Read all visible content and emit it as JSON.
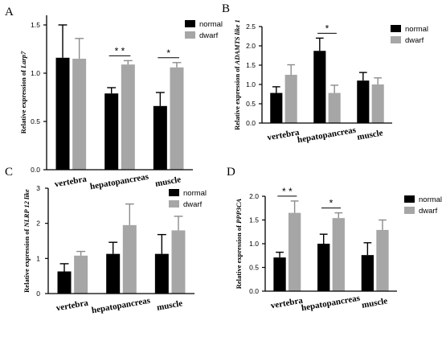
{
  "colors": {
    "normal": "#000000",
    "dwarf": "#a6a6a6",
    "axis": "#000000"
  },
  "chart_data": [
    {
      "panel_label": "A",
      "type": "bar",
      "ylabel": "Relative expression of Larp7",
      "ylabel_prefix": "Relative expression of",
      "ylabel_gene": "Larp7",
      "ylim": [
        0,
        1.6
      ],
      "yticks": [
        0.0,
        0.5,
        1.0,
        1.5
      ],
      "ytick_labels": [
        "0.0",
        "0.5",
        "1.0",
        "1.5"
      ],
      "categories": [
        "vertebra",
        "hepatopancreas",
        "muscle"
      ],
      "series": [
        {
          "name": "normal",
          "values": [
            1.16,
            0.79,
            0.66
          ],
          "errors": [
            0.34,
            0.06,
            0.14
          ]
        },
        {
          "name": "dwarf",
          "values": [
            1.15,
            1.09,
            1.06
          ],
          "errors": [
            0.21,
            0.04,
            0.05
          ]
        }
      ],
      "annotations": [
        {
          "category": 1,
          "text": "* *"
        },
        {
          "category": 2,
          "text": "*"
        }
      ],
      "legend_position": "top-right"
    },
    {
      "panel_label": "B",
      "type": "bar",
      "ylabel": "Relative expression of ADAMTS like 1",
      "ylabel_prefix": "Relative expression of",
      "ylabel_gene": "ADAMTS like 1",
      "ylim": [
        0,
        2.5
      ],
      "yticks": [
        0.0,
        0.5,
        1.0,
        1.5,
        2.0,
        2.5
      ],
      "ytick_labels": [
        "0.0",
        "0.5",
        "1.0",
        "1.5",
        "2.0",
        "2.5"
      ],
      "categories": [
        "vertebra",
        "hepatopancreas",
        "muscle"
      ],
      "series": [
        {
          "name": "normal",
          "values": [
            0.78,
            1.87,
            1.1
          ],
          "errors": [
            0.16,
            0.33,
            0.21
          ]
        },
        {
          "name": "dwarf",
          "values": [
            1.25,
            0.78,
            1.0
          ],
          "errors": [
            0.26,
            0.2,
            0.17
          ]
        }
      ],
      "annotations": [
        {
          "category": 1,
          "text": "*"
        }
      ],
      "legend_position": "top-right"
    },
    {
      "panel_label": "C",
      "type": "bar",
      "ylabel": "Relative expression of NLRP 12 like",
      "ylabel_prefix": "Relative expression of",
      "ylabel_gene": "NLRP 12 like",
      "ylim": [
        0,
        3
      ],
      "yticks": [
        0,
        1,
        2,
        3
      ],
      "ytick_labels": [
        "0",
        "1",
        "2",
        "3"
      ],
      "categories": [
        "vertebra",
        "hepatopancreas",
        "muscle"
      ],
      "series": [
        {
          "name": "normal",
          "values": [
            0.63,
            1.13,
            1.13
          ],
          "errors": [
            0.22,
            0.33,
            0.55
          ]
        },
        {
          "name": "dwarf",
          "values": [
            1.08,
            1.95,
            1.8
          ],
          "errors": [
            0.12,
            0.6,
            0.4
          ]
        }
      ],
      "annotations": [],
      "legend_position": "top-right"
    },
    {
      "panel_label": "D",
      "type": "bar",
      "ylabel": "Relative expression of PPP3CA",
      "ylabel_prefix": "Relative expression of",
      "ylabel_gene": "PPP3CA",
      "ylim": [
        0,
        2.0
      ],
      "yticks": [
        0.0,
        0.5,
        1.0,
        1.5,
        2.0
      ],
      "ytick_labels": [
        "0.0",
        "0.5",
        "1.0",
        "1.5",
        "2.0"
      ],
      "categories": [
        "vertebra",
        "hepatopancreas",
        "muscle"
      ],
      "series": [
        {
          "name": "normal",
          "values": [
            0.71,
            1.0,
            0.76
          ],
          "errors": [
            0.11,
            0.2,
            0.26
          ]
        },
        {
          "name": "dwarf",
          "values": [
            1.65,
            1.54,
            1.29
          ],
          "errors": [
            0.25,
            0.11,
            0.21
          ]
        }
      ],
      "annotations": [
        {
          "category": 0,
          "text": "* *"
        },
        {
          "category": 1,
          "text": "*"
        }
      ],
      "legend_position": "top-right"
    }
  ]
}
